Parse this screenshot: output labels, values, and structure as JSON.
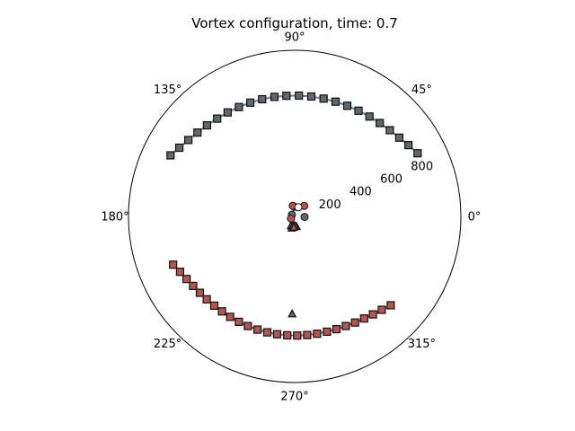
{
  "chart_data": {
    "type": "scatter",
    "projection": "polar",
    "title": "Vortex configuration, time: 0.7",
    "angle_ticks": [
      "0°",
      "45°",
      "90°",
      "135°",
      "180°",
      "225°",
      "270°",
      "315°"
    ],
    "angle_tick_values_deg": [
      0,
      45,
      90,
      135,
      180,
      225,
      270,
      315
    ],
    "radial_ticks": [
      "200",
      "400",
      "600",
      "800"
    ],
    "radial_tick_values": [
      200,
      400,
      600,
      800
    ],
    "radial_tick_angle_deg": 22.5,
    "rlim": [
      0,
      1000
    ],
    "grid": false,
    "colors": {
      "line": "#5b7fae",
      "marker_gray": "#666666",
      "marker_red": "#b55450",
      "edge": "#111111"
    },
    "series": [
      {
        "kind": "line-squares",
        "color": "gray",
        "points": [
          [
            153.8,
            832.8
          ],
          [
            149.2,
            807.8
          ],
          [
            144.3,
            788.1
          ],
          [
            139.2,
            772.6
          ],
          [
            133.9,
            760.7
          ],
          [
            128.4,
            751.3
          ],
          [
            122.8,
            744.5
          ],
          [
            117.0,
            739.0
          ],
          [
            111.3,
            735.2
          ],
          [
            105.5,
            732.0
          ],
          [
            99.6,
            729.9
          ],
          [
            93.9,
            727.9
          ],
          [
            88.0,
            727.2
          ],
          [
            82.1,
            728.6
          ],
          [
            76.2,
            730.1
          ],
          [
            70.4,
            733.4
          ],
          [
            64.6,
            737.5
          ],
          [
            58.9,
            743.1
          ],
          [
            53.2,
            751.0
          ],
          [
            47.7,
            760.3
          ],
          [
            42.2,
            772.5
          ],
          [
            37.0,
            787.8
          ],
          [
            32.1,
            807.8
          ],
          [
            27.2,
            831.4
          ]
        ]
      },
      {
        "kind": "line-squares",
        "color": "red",
        "points": [
          [
            201.7,
            786.9
          ],
          [
            205.8,
            766.1
          ],
          [
            210.1,
            751.4
          ],
          [
            214.4,
            740.6
          ],
          [
            218.9,
            732.8
          ],
          [
            223.3,
            727.4
          ],
          [
            228.0,
            723.2
          ],
          [
            232.6,
            720.1
          ],
          [
            237.3,
            718.7
          ],
          [
            242.1,
            717.8
          ],
          [
            246.9,
            717.6
          ],
          [
            251.8,
            717.3
          ],
          [
            256.7,
            717.2
          ],
          [
            261.5,
            717.3
          ],
          [
            266.4,
            717.2
          ],
          [
            271.2,
            717.2
          ],
          [
            276.0,
            718.0
          ],
          [
            280.8,
            719.4
          ],
          [
            285.6,
            720.8
          ],
          [
            290.3,
            724.1
          ],
          [
            295.0,
            728.2
          ],
          [
            299.6,
            734.9
          ],
          [
            304.2,
            743.0
          ],
          [
            308.6,
            754.3
          ],
          [
            313.0,
            768.4
          ],
          [
            317.2,
            787.8
          ]
        ]
      },
      {
        "kind": "circles",
        "color": "gray",
        "points": [
          [
            90.3,
            57.5
          ],
          [
            148.7,
            19.9
          ],
          [
            356.7,
            59.6
          ]
        ]
      },
      {
        "kind": "circles",
        "color": "red",
        "points": [
          [
            100.2,
            64.6
          ],
          [
            48.0,
            85.4
          ],
          [
            211.4,
            26.2
          ]
        ]
      },
      {
        "kind": "circles-open",
        "color": "white",
        "points": [
          [
            68.0,
            59.3
          ]
        ]
      },
      {
        "kind": "triangles",
        "color": "gray",
        "points": [
          [
            256.0,
            73.9
          ],
          [
            279.8,
            63.0
          ],
          [
            265.8,
            58.4
          ],
          [
            248.6,
            61.3
          ],
          [
            258.8,
            63.1
          ],
          [
            272.3,
            58.7
          ],
          [
            268.5,
            588.4
          ]
        ]
      },
      {
        "kind": "triangles",
        "color": "red",
        "points": [
          [
            265.2,
            67.1
          ]
        ]
      }
    ]
  }
}
